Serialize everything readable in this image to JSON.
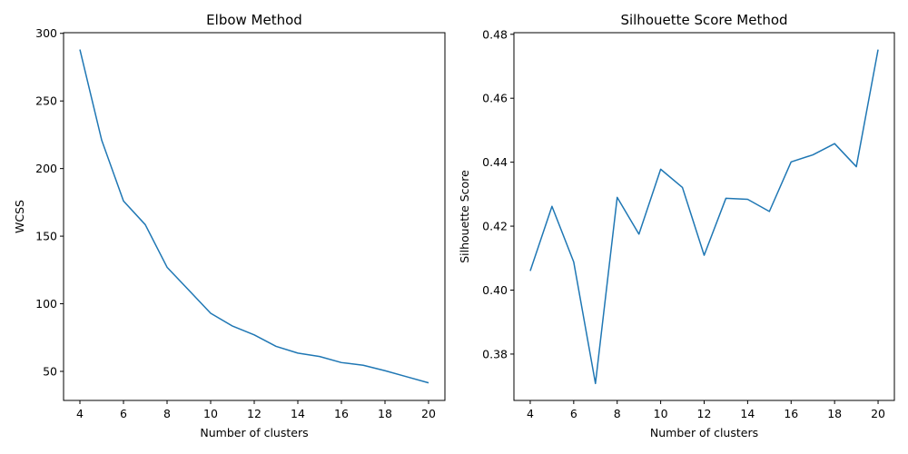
{
  "chart_data": [
    {
      "type": "line",
      "title": "Elbow Method",
      "xlabel": "Number of clusters",
      "ylabel": "WCSS",
      "xlim": [
        3.25,
        20.75
      ],
      "ylim": [
        28.5,
        300.5
      ],
      "xticks": [
        4,
        6,
        8,
        10,
        12,
        14,
        16,
        18,
        20
      ],
      "yticks": [
        50,
        100,
        150,
        200,
        250,
        300
      ],
      "grid": false,
      "line_color": "#1f77b4",
      "series": [
        {
          "x": [
            4,
            5,
            6,
            7,
            8,
            9,
            10,
            11,
            12,
            13,
            14,
            15,
            16,
            17,
            18,
            19,
            20
          ],
          "values": [
            288,
            221,
            176,
            158.5,
            127,
            110,
            93,
            83.5,
            77,
            68.5,
            63.5,
            61,
            56.5,
            54.5,
            50.5,
            46,
            41.5
          ]
        }
      ]
    },
    {
      "type": "line",
      "title": "Silhouette Score Method",
      "xlabel": "Number of clusters",
      "ylabel": "Silhouette Score",
      "xlim": [
        3.25,
        20.75
      ],
      "ylim": [
        0.3655,
        0.4805
      ],
      "xticks": [
        4,
        6,
        8,
        10,
        12,
        14,
        16,
        18,
        20
      ],
      "yticks": [
        0.38,
        0.4,
        0.42,
        0.44,
        0.46,
        0.48
      ],
      "ytick_labels": [
        "0.38",
        "0.40",
        "0.42",
        "0.44",
        "0.46",
        "0.48"
      ],
      "grid": false,
      "line_color": "#1f77b4",
      "series": [
        {
          "x": [
            4,
            5,
            6,
            7,
            8,
            9,
            10,
            11,
            12,
            13,
            14,
            15,
            16,
            17,
            18,
            19,
            20
          ],
          "values": [
            0.406,
            0.4262,
            0.4088,
            0.3708,
            0.429,
            0.4175,
            0.4378,
            0.4321,
            0.4109,
            0.4287,
            0.4284,
            0.4246,
            0.4401,
            0.4423,
            0.4458,
            0.4386,
            0.4752
          ]
        }
      ]
    }
  ]
}
